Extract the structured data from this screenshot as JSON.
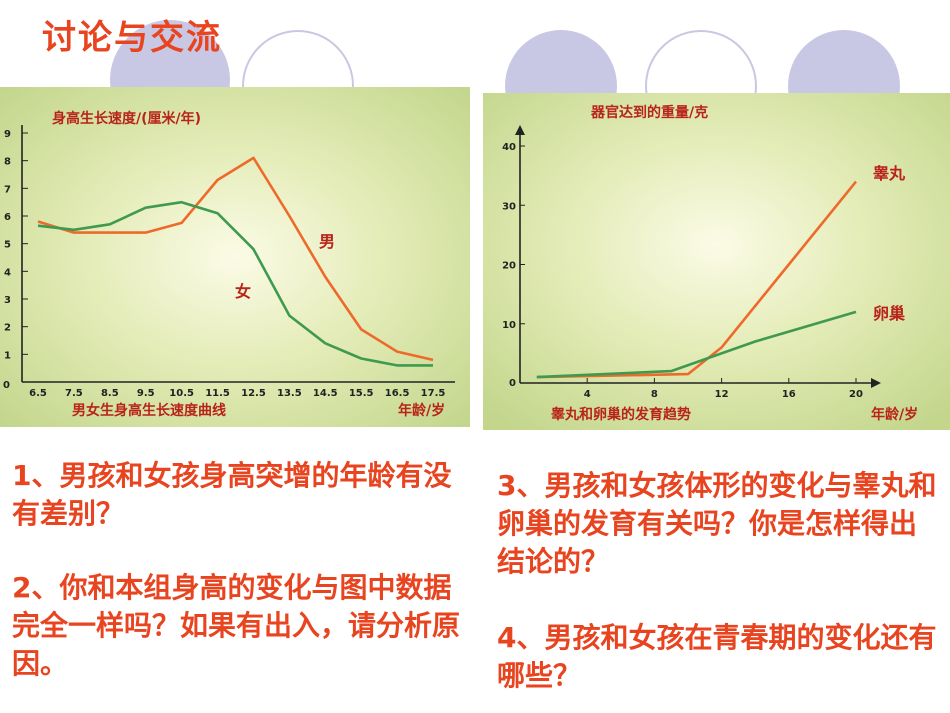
{
  "title": "讨论与交流",
  "colors": {
    "accent": "#e8441f",
    "series_orange": "#ee6a2a",
    "series_green": "#3f9a4f",
    "label_red": "#b8231a",
    "deco": "#c8c8e4"
  },
  "chart_data": [
    {
      "type": "line",
      "ylabel": "身高生长速度/(厘米/年)",
      "xlabel": "年龄/岁",
      "caption": "男女生身高生长速度曲线",
      "x": [
        6.5,
        7.5,
        8.5,
        9.5,
        10.5,
        11.5,
        12.5,
        13.5,
        14.5,
        15.5,
        16.5,
        17.5
      ],
      "xticks": [
        "6.5",
        "7.5",
        "8.5",
        "9.5",
        "10.5",
        "11.5",
        "12.5",
        "13.5",
        "14.5",
        "15.5",
        "16.5",
        "17.5"
      ],
      "yticks": [
        "0",
        "1",
        "2",
        "3",
        "4",
        "5",
        "6",
        "7",
        "8",
        "9"
      ],
      "ylim": [
        0,
        9
      ],
      "xlim": [
        6.5,
        17.5
      ],
      "series": [
        {
          "name": "男",
          "color": "#ee6a2a",
          "values": [
            5.8,
            5.4,
            5.4,
            5.4,
            5.75,
            7.3,
            8.1,
            6.0,
            3.8,
            1.9,
            1.1,
            0.8
          ]
        },
        {
          "name": "女",
          "color": "#3f9a4f",
          "values": [
            5.65,
            5.5,
            5.7,
            6.3,
            6.5,
            6.1,
            4.8,
            2.4,
            1.4,
            0.85,
            0.6,
            0.6
          ]
        }
      ]
    },
    {
      "type": "line",
      "ylabel": "器官达到的重量/克",
      "xlabel": "年龄/岁",
      "caption": "睾丸和卵巢的发育趋势",
      "xticks": [
        "4",
        "8",
        "12",
        "16",
        "20"
      ],
      "yticks": [
        "0",
        "10",
        "20",
        "30",
        "40"
      ],
      "ylim": [
        0,
        40
      ],
      "xlim": [
        0,
        20
      ],
      "series": [
        {
          "name": "睾丸",
          "color": "#ee6a2a",
          "points": [
            [
              1,
              1
            ],
            [
              10,
              1.5
            ],
            [
              12,
              6
            ],
            [
              16,
              20
            ],
            [
              20,
              34
            ]
          ]
        },
        {
          "name": "卵巢",
          "color": "#3f9a4f",
          "points": [
            [
              1,
              1
            ],
            [
              9,
              2
            ],
            [
              14,
              7
            ],
            [
              20,
              12
            ]
          ]
        }
      ]
    }
  ],
  "questions": [
    "1、男孩和女孩身高突增的年龄有没有差别？",
    "2、你和本组身高的变化与图中数据完全一样吗？如果有出入，请分析原因。",
    "3、男孩和女孩体形的变化与睾丸和卵巢的发育有关吗？你是怎样得出结论的？",
    "4、男孩和女孩在青春期的变化还有哪些？"
  ]
}
